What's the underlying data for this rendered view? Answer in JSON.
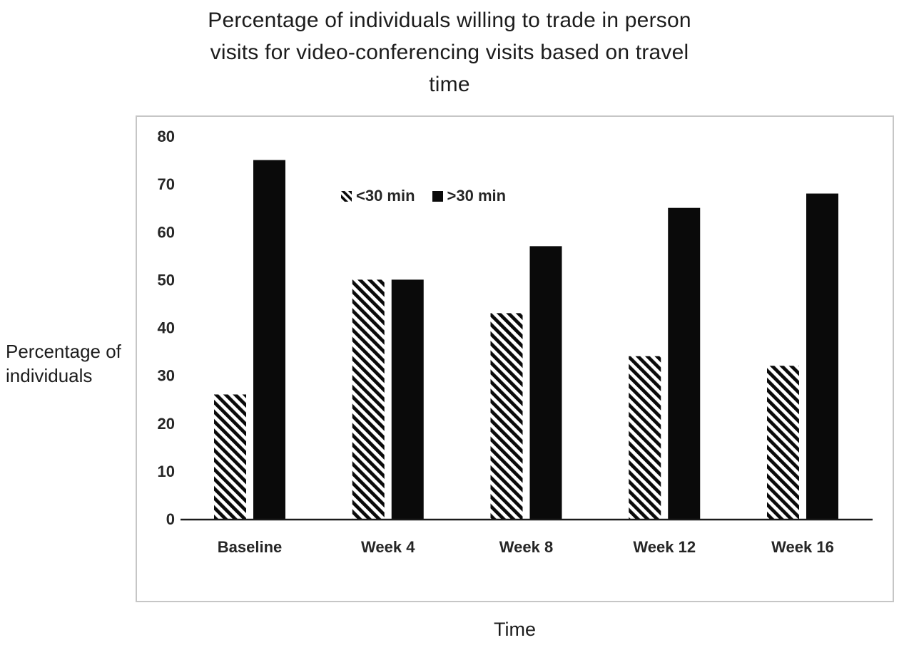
{
  "figure": {
    "title_lines": [
      "Percentage of individuals willing to trade in person",
      "visits for video-conferencing visits based on travel",
      "time"
    ],
    "ylabel_lines": [
      "Percentage of",
      "individuals"
    ]
  },
  "chart_data": {
    "type": "bar",
    "title": "Percentage of individuals willing to trade in person visits for video-conferencing visits based on travel time",
    "categories": [
      "Baseline",
      "Week 4",
      "Week 8",
      "Week 12",
      "Week 16"
    ],
    "series": [
      {
        "name": "<30 min",
        "style": "hatched",
        "values": [
          26,
          50,
          43,
          34,
          32
        ]
      },
      {
        "name": ">30 min",
        "style": "solid",
        "values": [
          75,
          50,
          57,
          65,
          68
        ]
      }
    ],
    "xlabel": "Time",
    "ylabel": "Percentage of individuals",
    "ylim": [
      0,
      80
    ],
    "ytick_step": 10,
    "yticks": [
      0,
      10,
      20,
      30,
      40,
      50,
      60,
      70,
      80
    ],
    "grid": false,
    "legend_position": "inside-top-left",
    "colors": {
      "bar": "#0a0a0a",
      "axis": "#1a1a1a",
      "text": "#262626",
      "plot_border": "#c6c6c6",
      "background": "#ffffff"
    }
  }
}
